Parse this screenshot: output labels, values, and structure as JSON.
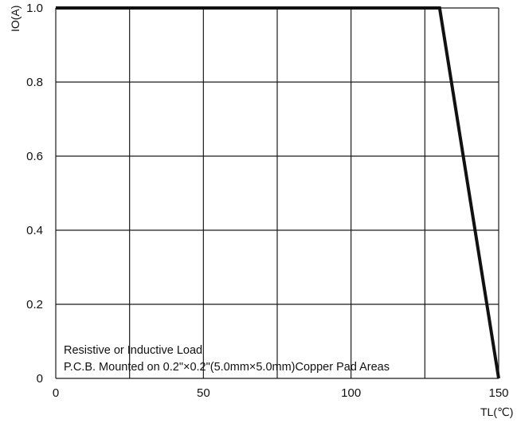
{
  "chart_data": {
    "type": "line",
    "title": "",
    "xlabel": "TL(℃)",
    "ylabel": "IO(A)",
    "xlim": [
      0,
      150
    ],
    "ylim": [
      0,
      1.0
    ],
    "grid": true,
    "x_ticks": [
      0,
      50,
      100,
      150
    ],
    "x_tick_labels": [
      "0",
      "50",
      "100",
      "150"
    ],
    "x_grid_lines": [
      0,
      25,
      50,
      75,
      100,
      125,
      150
    ],
    "y_ticks": [
      0,
      0.2,
      0.4,
      0.6,
      0.8,
      1.0
    ],
    "y_tick_labels": [
      "0",
      "0.2",
      "0.4",
      "0.6",
      "0.8",
      "1.0"
    ],
    "series": [
      {
        "x": [
          0,
          130,
          150
        ],
        "y": [
          1.0,
          1.0,
          0
        ]
      }
    ],
    "annotations": [
      "Resistive or Inductive Load",
      "P.C.B. Mounted on 0.2\"×0.2\"(5.0mm×5.0mm)Copper Pad Areas"
    ]
  }
}
